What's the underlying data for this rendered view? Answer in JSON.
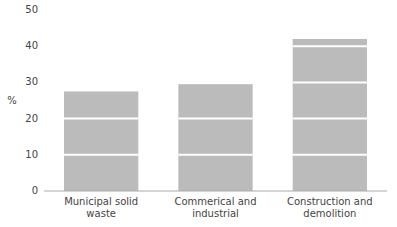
{
  "chart_data": {
    "type": "bar",
    "categories": [
      "Municipal solid\nwaste",
      "Commerical and\nindustrial",
      "Construction and\ndemolition"
    ],
    "values": [
      27.5,
      29.5,
      42.0
    ],
    "segment_boundaries": [
      10,
      20,
      30,
      40
    ],
    "color": "#bbbbbb",
    "ylabel": "%",
    "ylim": [
      0,
      50
    ],
    "yticks": [
      0,
      10,
      20,
      30,
      40,
      50
    ],
    "grid": false
  }
}
